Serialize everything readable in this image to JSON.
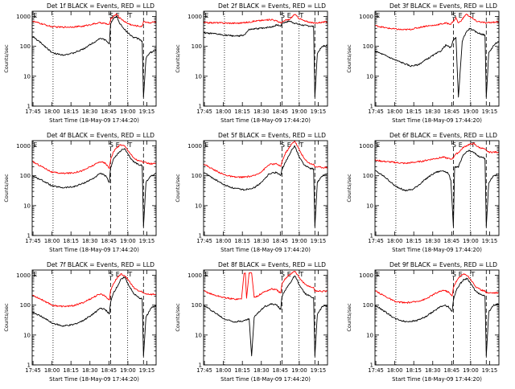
{
  "common": {
    "xlabel": "Start Time (18-May-09 17:44:20)",
    "ylabel": "Counts/sec",
    "x_ticks": [
      "17:45",
      "18:00",
      "18:15",
      "18:30",
      "18:45",
      "19:00",
      "19:15"
    ],
    "x_tick_minutes": [
      0.67,
      15.67,
      30.67,
      45.67,
      60.67,
      75.67,
      90.67
    ],
    "xlim_minutes": [
      0,
      98
    ],
    "y_ticks": [
      "1",
      "10",
      "100",
      "1000"
    ],
    "ylim": [
      1,
      1500
    ],
    "y_scale": "log",
    "colors": {
      "events": "#000000",
      "lld": "#ff0000"
    },
    "vlines_dotted_min": [
      16.5,
      75.5
    ],
    "vlines_dashed_min": [
      62,
      88
    ],
    "marker_labels": [
      {
        "text": "E",
        "at_min": 0.8
      },
      {
        "text": "S",
        "at_min": 61
      },
      {
        "text": "E",
        "at_min": 66
      },
      {
        "text": "T",
        "at_min": 76
      }
    ]
  },
  "chart_data": [
    {
      "type": "line",
      "title": "Det 1f BLACK = Events, RED = LLD",
      "log_scale_y": true,
      "series": [
        {
          "color": "#000000",
          "x": [
            0,
            8,
            16,
            24,
            32,
            40,
            48,
            54,
            58,
            61,
            62,
            65,
            67,
            69,
            75,
            80,
            84,
            87,
            88,
            90,
            93,
            96,
            98
          ],
          "y": [
            220,
            120,
            60,
            52,
            58,
            80,
            130,
            190,
            160,
            120,
            600,
            900,
            1000,
            600,
            300,
            200,
            180,
            150,
            2,
            40,
            60,
            70,
            75
          ]
        },
        {
          "color": "#ff0000",
          "x": [
            0,
            8,
            16,
            24,
            32,
            40,
            48,
            54,
            58,
            61,
            62,
            65,
            67,
            69,
            75,
            80,
            84,
            87,
            88,
            90,
            93,
            96,
            98
          ],
          "y": [
            700,
            560,
            450,
            440,
            450,
            470,
            560,
            620,
            580,
            520,
            800,
            1100,
            1200,
            900,
            600,
            500,
            480,
            460,
            700,
            650,
            620,
            650,
            660
          ]
        }
      ]
    },
    {
      "type": "line",
      "title": "Det 2f BLACK = Events, RED = LLD",
      "log_scale_y": true,
      "series": [
        {
          "color": "#000000",
          "x": [
            0,
            10,
            20,
            28,
            32,
            36,
            40,
            48,
            54,
            58,
            61,
            62,
            65,
            68,
            72,
            75,
            80,
            84,
            87,
            88,
            90,
            94,
            98
          ],
          "y": [
            280,
            260,
            230,
            220,
            240,
            360,
            380,
            420,
            450,
            520,
            480,
            600,
            650,
            700,
            600,
            550,
            500,
            480,
            460,
            2,
            60,
            100,
            110
          ]
        },
        {
          "color": "#ff0000",
          "x": [
            0,
            10,
            20,
            28,
            32,
            36,
            40,
            48,
            54,
            58,
            61,
            62,
            65,
            68,
            72,
            75,
            80,
            84,
            87,
            88,
            90,
            94,
            98
          ],
          "y": [
            620,
            620,
            600,
            600,
            620,
            650,
            700,
            750,
            800,
            700,
            620,
            650,
            750,
            800,
            1200,
            900,
            700,
            650,
            600,
            600,
            620,
            650,
            650
          ]
        }
      ]
    },
    {
      "type": "line",
      "title": "Det 3f BLACK = Events, RED = LLD",
      "log_scale_y": true,
      "series": [
        {
          "color": "#000000",
          "x": [
            0,
            8,
            16,
            22,
            28,
            34,
            40,
            46,
            52,
            56,
            60,
            62,
            64,
            66,
            69,
            72,
            75,
            80,
            84,
            87,
            88,
            90,
            94,
            98
          ],
          "y": [
            70,
            50,
            35,
            28,
            22,
            24,
            35,
            50,
            70,
            110,
            90,
            160,
            200,
            2,
            150,
            300,
            400,
            300,
            260,
            240,
            2,
            60,
            110,
            150
          ]
        },
        {
          "color": "#ff0000",
          "x": [
            0,
            8,
            16,
            22,
            28,
            34,
            40,
            46,
            52,
            56,
            60,
            62,
            64,
            66,
            69,
            72,
            75,
            80,
            84,
            87,
            88,
            90,
            94,
            98
          ],
          "y": [
            500,
            420,
            380,
            360,
            370,
            420,
            480,
            500,
            560,
            600,
            560,
            700,
            900,
            600,
            800,
            1200,
            1000,
            700,
            650,
            620,
            600,
            620,
            650,
            660
          ]
        }
      ]
    },
    {
      "type": "line",
      "title": "Det 4f BLACK = Events, RED = LLD",
      "log_scale_y": true,
      "series": [
        {
          "color": "#000000",
          "x": [
            0,
            8,
            16,
            24,
            32,
            40,
            48,
            54,
            58,
            61,
            62,
            64,
            67,
            70,
            73,
            76,
            80,
            84,
            87,
            88,
            90,
            94,
            98
          ],
          "y": [
            100,
            70,
            45,
            40,
            42,
            55,
            80,
            120,
            100,
            60,
            180,
            350,
            500,
            700,
            800,
            500,
            300,
            240,
            220,
            2,
            60,
            100,
            120
          ]
        },
        {
          "color": "#ff0000",
          "x": [
            0,
            8,
            16,
            24,
            32,
            40,
            48,
            54,
            58,
            61,
            62,
            64,
            67,
            70,
            73,
            76,
            80,
            84,
            87,
            88,
            90,
            94,
            98
          ],
          "y": [
            300,
            200,
            130,
            120,
            125,
            150,
            220,
            300,
            260,
            180,
            350,
            600,
            900,
            1100,
            1000,
            700,
            400,
            320,
            300,
            280,
            270,
            250,
            260
          ]
        }
      ]
    },
    {
      "type": "line",
      "title": "Det 5f BLACK = Events, RED = LLD",
      "log_scale_y": true,
      "series": [
        {
          "color": "#000000",
          "x": [
            0,
            8,
            16,
            24,
            32,
            40,
            46,
            52,
            58,
            61,
            62,
            65,
            68,
            70,
            72,
            76,
            80,
            84,
            87,
            88,
            90,
            94,
            98
          ],
          "y": [
            130,
            80,
            50,
            38,
            34,
            40,
            60,
            120,
            130,
            100,
            160,
            300,
            500,
            800,
            1000,
            400,
            220,
            180,
            170,
            2,
            60,
            100,
            120
          ]
        },
        {
          "color": "#ff0000",
          "x": [
            0,
            8,
            16,
            24,
            32,
            40,
            46,
            52,
            58,
            61,
            62,
            65,
            68,
            70,
            72,
            76,
            80,
            84,
            87,
            88,
            90,
            94,
            98
          ],
          "y": [
            250,
            160,
            110,
            90,
            90,
            100,
            140,
            240,
            250,
            200,
            300,
            600,
            900,
            1200,
            1500,
            700,
            350,
            260,
            240,
            200,
            200,
            190,
            190
          ]
        }
      ]
    },
    {
      "type": "line",
      "title": "Det 6f BLACK = Events, RED = LLD",
      "log_scale_y": true,
      "series": [
        {
          "color": "#000000",
          "x": [
            0,
            8,
            16,
            24,
            30,
            36,
            42,
            48,
            54,
            58,
            60,
            62,
            63,
            66,
            70,
            74,
            78,
            82,
            86,
            87,
            88,
            90,
            94,
            98
          ],
          "y": [
            150,
            90,
            45,
            32,
            35,
            55,
            90,
            130,
            150,
            120,
            70,
            2,
            200,
            200,
            500,
            700,
            600,
            450,
            400,
            380,
            2,
            60,
            100,
            120
          ]
        },
        {
          "color": "#ff0000",
          "x": [
            0,
            8,
            16,
            24,
            30,
            36,
            42,
            48,
            54,
            58,
            60,
            62,
            63,
            66,
            70,
            74,
            78,
            82,
            86,
            87,
            88,
            90,
            94,
            98
          ],
          "y": [
            330,
            300,
            280,
            260,
            280,
            300,
            340,
            380,
            420,
            380,
            360,
            400,
            500,
            600,
            900,
            1100,
            1200,
            900,
            800,
            750,
            700,
            620,
            620,
            620
          ]
        }
      ]
    },
    {
      "type": "line",
      "title": "Det 7f BLACK = Events, RED = LLD",
      "log_scale_y": true,
      "series": [
        {
          "color": "#000000",
          "x": [
            0,
            8,
            16,
            24,
            32,
            40,
            48,
            54,
            58,
            61,
            62,
            64,
            67,
            70,
            73,
            76,
            80,
            84,
            87,
            88,
            90,
            94,
            98
          ],
          "y": [
            60,
            40,
            25,
            20,
            22,
            30,
            50,
            80,
            70,
            50,
            120,
            250,
            400,
            700,
            900,
            500,
            250,
            180,
            160,
            2,
            40,
            80,
            100
          ]
        },
        {
          "color": "#ff0000",
          "x": [
            0,
            8,
            16,
            24,
            32,
            40,
            48,
            54,
            58,
            61,
            62,
            64,
            67,
            70,
            73,
            76,
            80,
            84,
            87,
            88,
            90,
            94,
            98
          ],
          "y": [
            220,
            150,
            100,
            90,
            95,
            120,
            180,
            240,
            200,
            150,
            300,
            500,
            800,
            1100,
            1000,
            700,
            400,
            300,
            280,
            250,
            240,
            230,
            230
          ]
        }
      ]
    },
    {
      "type": "line",
      "title": "Det 8f BLACK = Events, RED = LLD",
      "log_scale_y": true,
      "series": [
        {
          "color": "#000000",
          "x": [
            0,
            8,
            16,
            24,
            32,
            36,
            38,
            40,
            44,
            48,
            54,
            58,
            61,
            62,
            64,
            67,
            70,
            72,
            76,
            80,
            84,
            87,
            88,
            90,
            94,
            98
          ],
          "y": [
            100,
            60,
            35,
            28,
            30,
            35,
            2,
            40,
            60,
            90,
            110,
            100,
            70,
            200,
            300,
            450,
            700,
            1000,
            450,
            250,
            200,
            180,
            2,
            50,
            90,
            100
          ]
        },
        {
          "color": "#ff0000",
          "x": [
            0,
            8,
            16,
            24,
            30,
            32,
            33,
            34,
            36,
            38,
            40,
            44,
            48,
            54,
            58,
            61,
            62,
            64,
            67,
            70,
            72,
            76,
            80,
            84,
            87,
            88,
            90,
            94,
            98
          ],
          "y": [
            300,
            220,
            180,
            160,
            160,
            1200,
            1200,
            170,
            1200,
            1200,
            180,
            220,
            280,
            350,
            320,
            250,
            500,
            700,
            1000,
            1200,
            1400,
            800,
            500,
            420,
            380,
            300,
            300,
            290,
            290
          ]
        }
      ]
    },
    {
      "type": "line",
      "title": "Det 9f BLACK = Events, RED = LLD",
      "log_scale_y": true,
      "series": [
        {
          "color": "#000000",
          "x": [
            0,
            8,
            16,
            24,
            32,
            40,
            48,
            54,
            58,
            61,
            62,
            64,
            67,
            70,
            73,
            76,
            80,
            84,
            87,
            88,
            90,
            94,
            98
          ],
          "y": [
            100,
            60,
            35,
            28,
            30,
            40,
            70,
            100,
            90,
            60,
            150,
            300,
            500,
            700,
            800,
            500,
            280,
            220,
            200,
            2,
            60,
            100,
            110
          ]
        },
        {
          "color": "#ff0000",
          "x": [
            0,
            8,
            16,
            24,
            32,
            40,
            48,
            54,
            58,
            61,
            62,
            64,
            67,
            70,
            73,
            76,
            80,
            84,
            87,
            88,
            90,
            94,
            98
          ],
          "y": [
            300,
            200,
            130,
            120,
            130,
            160,
            250,
            320,
            280,
            200,
            400,
            600,
            900,
            1100,
            1000,
            700,
            400,
            320,
            300,
            270,
            260,
            260,
            260
          ]
        }
      ]
    }
  ]
}
